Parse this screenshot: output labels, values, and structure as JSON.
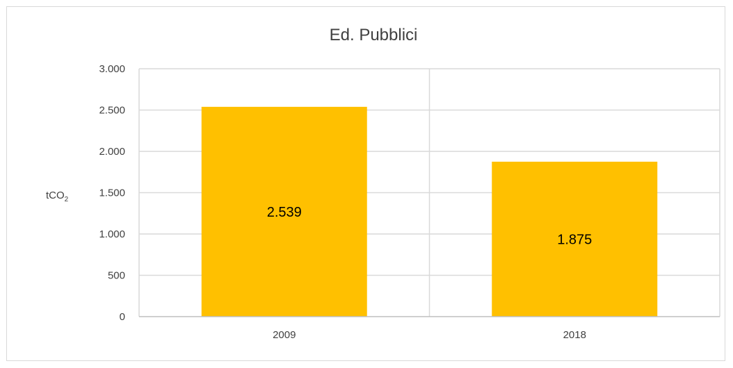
{
  "chart_data": {
    "type": "bar",
    "title": "Ed. Pubblici",
    "ylabel": {
      "main": "tCO",
      "subscript": "2"
    },
    "xlabel": "",
    "categories": [
      "2009",
      "2018"
    ],
    "series": [
      {
        "values": [
          2539,
          1875
        ],
        "labels": [
          "2.539",
          "1.875"
        ],
        "color": "#ffc000"
      }
    ],
    "ylim": [
      0,
      3000
    ],
    "yticks": [
      0,
      500,
      1000,
      1500,
      2000,
      2500,
      3000
    ],
    "ytick_labels": [
      "0",
      "500",
      "1.000",
      "1.500",
      "2.000",
      "2.500",
      "3.000"
    ],
    "grid": true,
    "legend": "none"
  }
}
